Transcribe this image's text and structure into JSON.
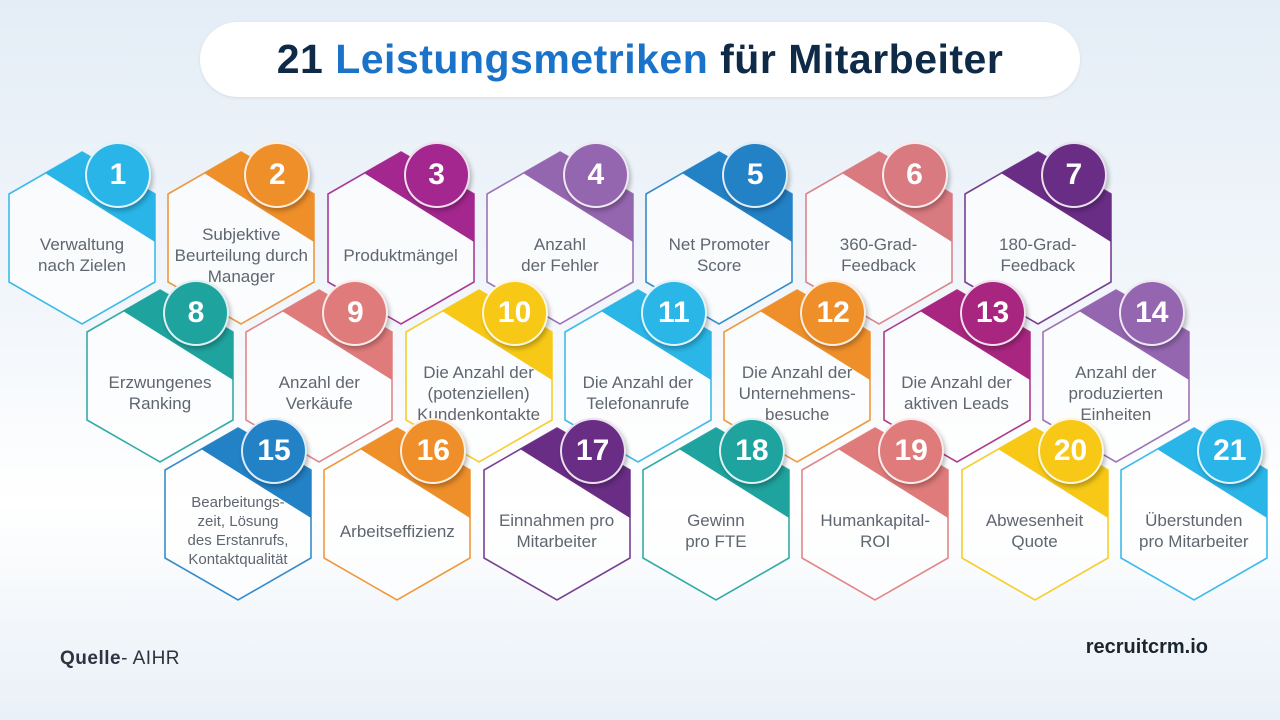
{
  "title": {
    "number": "21",
    "highlight": "Leistungsmetriken",
    "rest": "für Mitarbeiter",
    "highlight_color": "#1a73c8",
    "text_color": "#0e2a47"
  },
  "metrics": [
    {
      "num": "1",
      "label": "Verwaltung\nnach Zielen",
      "color": "#29b5e8"
    },
    {
      "num": "2",
      "label": "Subjektive\nBeurteilung durch\nManager",
      "color": "#ef8f2a"
    },
    {
      "num": "3",
      "label": "Produktmängel",
      "color": "#a3278f"
    },
    {
      "num": "4",
      "label": "Anzahl\nder Fehler",
      "color": "#9566b0"
    },
    {
      "num": "5",
      "label": "Net Promoter\nScore",
      "color": "#2381c6"
    },
    {
      "num": "6",
      "label": "360-Grad-\nFeedback",
      "color": "#d97a80"
    },
    {
      "num": "7",
      "label": "180-Grad-\nFeedback",
      "color": "#6a2d86"
    },
    {
      "num": "8",
      "label": "Erzwungenes\nRanking",
      "color": "#1fa39e"
    },
    {
      "num": "9",
      "label": "Anzahl der\nVerkäufe",
      "color": "#e07b7b"
    },
    {
      "num": "10",
      "label": "Die Anzahl der\n(potenziellen)\nKundenkontakte",
      "color": "#f7c916"
    },
    {
      "num": "11",
      "label": "Die Anzahl der\nTelefonanrufe",
      "color": "#2ab6e6"
    },
    {
      "num": "12",
      "label": "Die Anzahl der\nUnternehmens-\nbesuche",
      "color": "#ef8f2a"
    },
    {
      "num": "13",
      "label": "Die Anzahl der\naktiven Leads",
      "color": "#a8267f"
    },
    {
      "num": "14",
      "label": "Anzahl der\nproduzierten\nEinheiten",
      "color": "#9566b0"
    },
    {
      "num": "15",
      "label": "Bearbeitungs-\nzeit, Lösung\ndes Erstanrufs,\nKontaktqualität",
      "color": "#2381c6"
    },
    {
      "num": "16",
      "label": "Arbeitseffizienz",
      "color": "#ef8f2a"
    },
    {
      "num": "17",
      "label": "Einnahmen pro\nMitarbeiter",
      "color": "#6a2d86"
    },
    {
      "num": "18",
      "label": "Gewinn\npro FTE",
      "color": "#1fa39e"
    },
    {
      "num": "19",
      "label": "Humankapital-\nROI",
      "color": "#e07b7b"
    },
    {
      "num": "20",
      "label": "Abwesenheit\nQuote",
      "color": "#f7c916"
    },
    {
      "num": "21",
      "label": "Überstunden\npro Mitarbeiter",
      "color": "#29b5e8"
    }
  ],
  "footer": {
    "source_label": "Quelle",
    "source_value": "- AIHR",
    "brand": "recruitcrm.io"
  }
}
